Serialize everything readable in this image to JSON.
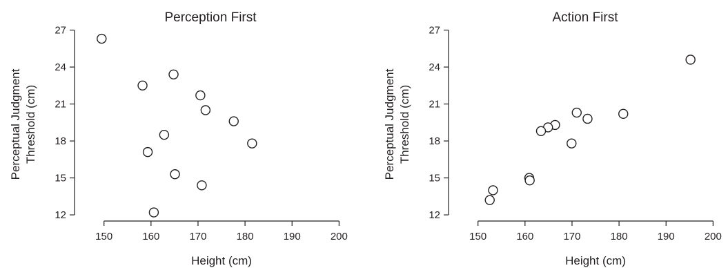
{
  "chart_data": [
    {
      "type": "scatter",
      "title": "Perception First",
      "xlabel": "Height (cm)",
      "ylabel": [
        "Perceptual Judgment",
        "Threshold (cm)"
      ],
      "xlim": [
        143,
        202
      ],
      "ylim": [
        11.5,
        27.2
      ],
      "xticks": [
        150,
        160,
        170,
        180,
        190,
        200
      ],
      "yticks": [
        12,
        15,
        18,
        21,
        24,
        27
      ],
      "grid": false,
      "points": [
        {
          "x": 149.5,
          "y": 26.3
        },
        {
          "x": 158.2,
          "y": 22.5
        },
        {
          "x": 164.8,
          "y": 23.4
        },
        {
          "x": 170.5,
          "y": 21.7
        },
        {
          "x": 171.6,
          "y": 20.5
        },
        {
          "x": 177.6,
          "y": 19.6
        },
        {
          "x": 162.8,
          "y": 18.5
        },
        {
          "x": 181.5,
          "y": 17.8
        },
        {
          "x": 159.3,
          "y": 17.1
        },
        {
          "x": 165.1,
          "y": 15.3
        },
        {
          "x": 170.8,
          "y": 14.4
        },
        {
          "x": 160.6,
          "y": 12.2
        }
      ]
    },
    {
      "type": "scatter",
      "title": "Action First",
      "xlabel": "Height (cm)",
      "ylabel": [
        "Perceptual Judgment",
        "Threshold (cm)"
      ],
      "xlim": [
        143,
        202
      ],
      "ylim": [
        11.5,
        27.2
      ],
      "xticks": [
        150,
        160,
        170,
        180,
        190,
        200
      ],
      "yticks": [
        12,
        15,
        18,
        21,
        24,
        27
      ],
      "grid": false,
      "points": [
        {
          "x": 195.2,
          "y": 24.6
        },
        {
          "x": 171.0,
          "y": 20.3
        },
        {
          "x": 180.9,
          "y": 20.2
        },
        {
          "x": 173.3,
          "y": 19.8
        },
        {
          "x": 166.4,
          "y": 19.3
        },
        {
          "x": 164.9,
          "y": 19.1
        },
        {
          "x": 163.4,
          "y": 18.8
        },
        {
          "x": 169.9,
          "y": 17.8
        },
        {
          "x": 160.9,
          "y": 15.0
        },
        {
          "x": 161.0,
          "y": 14.8
        },
        {
          "x": 153.2,
          "y": 14.0
        },
        {
          "x": 152.5,
          "y": 13.2
        }
      ]
    }
  ]
}
